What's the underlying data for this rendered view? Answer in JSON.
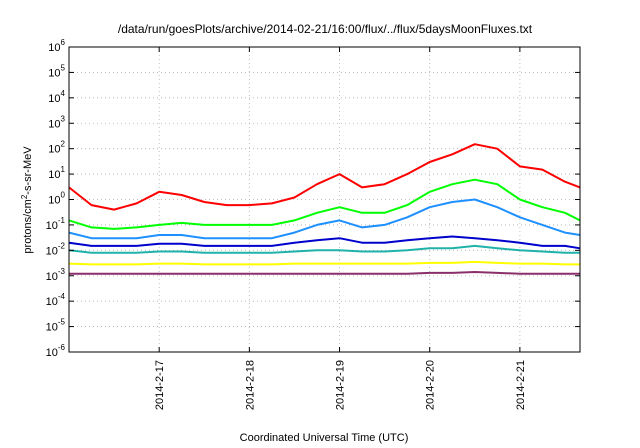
{
  "chart_data": {
    "type": "line",
    "title": "/data/run/goesPlots/archive/2014-02-21/16:00/flux/../flux/5daysMoonFluxes.txt",
    "xlabel": "Coordinated Universal Time (UTC)",
    "ylabel": "protons/cm2-s-sr-MeV",
    "ylabel_base": "protons/cm",
    "ylabel_sup": "2",
    "ylabel_tail": "-s-sr-MeV",
    "yscale": "log",
    "ylim": [
      1e-06,
      1000000.0
    ],
    "yticks": [
      {
        "base": "10",
        "exp": "-6"
      },
      {
        "base": "10",
        "exp": "-5"
      },
      {
        "base": "10",
        "exp": "-4"
      },
      {
        "base": "10",
        "exp": "-3"
      },
      {
        "base": "10",
        "exp": "-2"
      },
      {
        "base": "10",
        "exp": "-1"
      },
      {
        "base": "10",
        "exp": "0"
      },
      {
        "base": "10",
        "exp": "1"
      },
      {
        "base": "10",
        "exp": "2"
      },
      {
        "base": "10",
        "exp": "3"
      },
      {
        "base": "10",
        "exp": "4"
      },
      {
        "base": "10",
        "exp": "5"
      },
      {
        "base": "10",
        "exp": "6"
      }
    ],
    "xlim": [
      "2014-02-16 00:00",
      "2014-02-21 16:00"
    ],
    "xticks": [
      "2014-2-17",
      "2014-2-18",
      "2014-2-19",
      "2014-2-20",
      "2014-2-21"
    ],
    "grid": true,
    "series": [
      {
        "color": "#ff0000",
        "x": [
          "2014-02-16 00:00",
          "2014-02-16 06:00",
          "2014-02-16 12:00",
          "2014-02-16 18:00",
          "2014-02-17 00:00",
          "2014-02-17 06:00",
          "2014-02-17 12:00",
          "2014-02-17 18:00",
          "2014-02-18 00:00",
          "2014-02-18 06:00",
          "2014-02-18 12:00",
          "2014-02-18 18:00",
          "2014-02-19 00:00",
          "2014-02-19 06:00",
          "2014-02-19 12:00",
          "2014-02-19 18:00",
          "2014-02-20 00:00",
          "2014-02-20 06:00",
          "2014-02-20 12:00",
          "2014-02-20 18:00",
          "2014-02-21 00:00",
          "2014-02-21 06:00",
          "2014-02-21 12:00",
          "2014-02-21 16:00"
        ],
        "y": [
          3,
          0.6,
          0.4,
          0.7,
          2,
          1.5,
          0.8,
          0.6,
          0.6,
          0.7,
          1.2,
          4,
          10,
          3,
          4,
          10,
          30,
          60,
          150,
          100,
          20,
          15,
          5,
          3
        ]
      },
      {
        "color": "#00ff00",
        "x": [
          "2014-02-16 00:00",
          "2014-02-16 06:00",
          "2014-02-16 12:00",
          "2014-02-16 18:00",
          "2014-02-17 00:00",
          "2014-02-17 06:00",
          "2014-02-17 12:00",
          "2014-02-17 18:00",
          "2014-02-18 00:00",
          "2014-02-18 06:00",
          "2014-02-18 12:00",
          "2014-02-18 18:00",
          "2014-02-19 00:00",
          "2014-02-19 06:00",
          "2014-02-19 12:00",
          "2014-02-19 18:00",
          "2014-02-20 00:00",
          "2014-02-20 06:00",
          "2014-02-20 12:00",
          "2014-02-20 18:00",
          "2014-02-21 00:00",
          "2014-02-21 06:00",
          "2014-02-21 12:00",
          "2014-02-21 16:00"
        ],
        "y": [
          0.15,
          0.08,
          0.07,
          0.08,
          0.1,
          0.12,
          0.1,
          0.1,
          0.1,
          0.1,
          0.15,
          0.3,
          0.5,
          0.3,
          0.3,
          0.6,
          2,
          4,
          6,
          4,
          1,
          0.5,
          0.3,
          0.15
        ]
      },
      {
        "color": "#1e90ff",
        "x": [
          "2014-02-16 00:00",
          "2014-02-16 06:00",
          "2014-02-16 12:00",
          "2014-02-16 18:00",
          "2014-02-17 00:00",
          "2014-02-17 06:00",
          "2014-02-17 12:00",
          "2014-02-17 18:00",
          "2014-02-18 00:00",
          "2014-02-18 06:00",
          "2014-02-18 12:00",
          "2014-02-18 18:00",
          "2014-02-19 00:00",
          "2014-02-19 06:00",
          "2014-02-19 12:00",
          "2014-02-19 18:00",
          "2014-02-20 00:00",
          "2014-02-20 06:00",
          "2014-02-20 12:00",
          "2014-02-20 18:00",
          "2014-02-21 00:00",
          "2014-02-21 06:00",
          "2014-02-21 12:00",
          "2014-02-21 16:00"
        ],
        "y": [
          0.05,
          0.03,
          0.03,
          0.03,
          0.04,
          0.04,
          0.03,
          0.03,
          0.03,
          0.03,
          0.05,
          0.1,
          0.15,
          0.08,
          0.1,
          0.2,
          0.5,
          0.8,
          1,
          0.5,
          0.2,
          0.1,
          0.05,
          0.04
        ]
      },
      {
        "color": "#0000cd",
        "x": [
          "2014-02-16 00:00",
          "2014-02-16 06:00",
          "2014-02-16 12:00",
          "2014-02-16 18:00",
          "2014-02-17 00:00",
          "2014-02-17 06:00",
          "2014-02-17 12:00",
          "2014-02-17 18:00",
          "2014-02-18 00:00",
          "2014-02-18 06:00",
          "2014-02-18 12:00",
          "2014-02-18 18:00",
          "2014-02-19 00:00",
          "2014-02-19 06:00",
          "2014-02-19 12:00",
          "2014-02-19 18:00",
          "2014-02-20 00:00",
          "2014-02-20 06:00",
          "2014-02-20 12:00",
          "2014-02-20 18:00",
          "2014-02-21 00:00",
          "2014-02-21 06:00",
          "2014-02-21 12:00",
          "2014-02-21 16:00"
        ],
        "y": [
          0.02,
          0.015,
          0.015,
          0.015,
          0.018,
          0.018,
          0.015,
          0.015,
          0.015,
          0.015,
          0.02,
          0.025,
          0.03,
          0.02,
          0.02,
          0.025,
          0.03,
          0.035,
          0.03,
          0.025,
          0.02,
          0.015,
          0.015,
          0.012
        ]
      },
      {
        "color": "#20b2aa",
        "x": [
          "2014-02-16 00:00",
          "2014-02-16 06:00",
          "2014-02-16 12:00",
          "2014-02-16 18:00",
          "2014-02-17 00:00",
          "2014-02-17 06:00",
          "2014-02-17 12:00",
          "2014-02-17 18:00",
          "2014-02-18 00:00",
          "2014-02-18 06:00",
          "2014-02-18 12:00",
          "2014-02-18 18:00",
          "2014-02-19 00:00",
          "2014-02-19 06:00",
          "2014-02-19 12:00",
          "2014-02-19 18:00",
          "2014-02-20 00:00",
          "2014-02-20 06:00",
          "2014-02-20 12:00",
          "2014-02-20 18:00",
          "2014-02-21 00:00",
          "2014-02-21 06:00",
          "2014-02-21 12:00",
          "2014-02-21 16:00"
        ],
        "y": [
          0.01,
          0.008,
          0.008,
          0.008,
          0.009,
          0.009,
          0.008,
          0.008,
          0.008,
          0.008,
          0.009,
          0.01,
          0.01,
          0.009,
          0.009,
          0.01,
          0.012,
          0.012,
          0.015,
          0.012,
          0.01,
          0.009,
          0.008,
          0.008
        ]
      },
      {
        "color": "#ffff00",
        "x": [
          "2014-02-16 00:00",
          "2014-02-16 06:00",
          "2014-02-16 12:00",
          "2014-02-16 18:00",
          "2014-02-17 00:00",
          "2014-02-17 06:00",
          "2014-02-17 12:00",
          "2014-02-17 18:00",
          "2014-02-18 00:00",
          "2014-02-18 06:00",
          "2014-02-18 12:00",
          "2014-02-18 18:00",
          "2014-02-19 00:00",
          "2014-02-19 06:00",
          "2014-02-19 12:00",
          "2014-02-19 18:00",
          "2014-02-20 00:00",
          "2014-02-20 06:00",
          "2014-02-20 12:00",
          "2014-02-20 18:00",
          "2014-02-21 00:00",
          "2014-02-21 06:00",
          "2014-02-21 12:00",
          "2014-02-21 16:00"
        ],
        "y": [
          0.003,
          0.0028,
          0.0028,
          0.0028,
          0.003,
          0.003,
          0.0028,
          0.0028,
          0.0028,
          0.0028,
          0.003,
          0.003,
          0.003,
          0.003,
          0.003,
          0.003,
          0.0032,
          0.0032,
          0.0035,
          0.0032,
          0.003,
          0.003,
          0.0028,
          0.0028
        ]
      },
      {
        "color": "#8b2f6b",
        "x": [
          "2014-02-16 00:00",
          "2014-02-16 06:00",
          "2014-02-16 12:00",
          "2014-02-16 18:00",
          "2014-02-17 00:00",
          "2014-02-17 06:00",
          "2014-02-17 12:00",
          "2014-02-17 18:00",
          "2014-02-18 00:00",
          "2014-02-18 06:00",
          "2014-02-18 12:00",
          "2014-02-18 18:00",
          "2014-02-19 00:00",
          "2014-02-19 06:00",
          "2014-02-19 12:00",
          "2014-02-19 18:00",
          "2014-02-20 00:00",
          "2014-02-20 06:00",
          "2014-02-20 12:00",
          "2014-02-20 18:00",
          "2014-02-21 00:00",
          "2014-02-21 06:00",
          "2014-02-21 12:00",
          "2014-02-21 16:00"
        ],
        "y": [
          0.0012,
          0.0012,
          0.0012,
          0.0012,
          0.0012,
          0.0012,
          0.0012,
          0.0012,
          0.0012,
          0.0012,
          0.0012,
          0.0012,
          0.0012,
          0.0012,
          0.0012,
          0.0012,
          0.0013,
          0.0013,
          0.0014,
          0.0013,
          0.0012,
          0.0012,
          0.0012,
          0.0012
        ]
      }
    ]
  }
}
